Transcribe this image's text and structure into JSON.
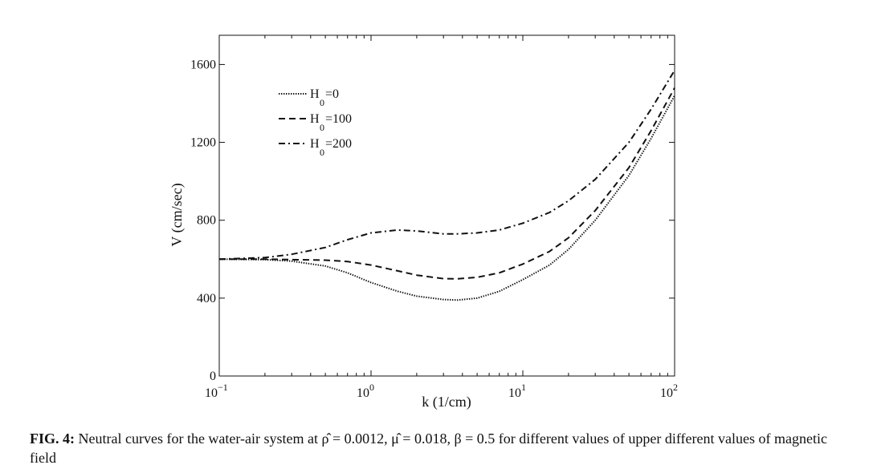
{
  "chart_data": {
    "type": "line",
    "xscale": "log",
    "xlim": [
      0.1,
      100
    ],
    "ylim": [
      0,
      1750
    ],
    "xlabel": "k (1/cm)",
    "ylabel": "V (cm/sec)",
    "x_ticks": [
      {
        "value": 0.1,
        "base": "10",
        "exp": "−1"
      },
      {
        "value": 1,
        "base": "10",
        "exp": "0"
      },
      {
        "value": 10,
        "base": "10",
        "exp": "1"
      },
      {
        "value": 100,
        "base": "10",
        "exp": "2"
      }
    ],
    "y_ticks": [
      {
        "value": 0,
        "label": "0"
      },
      {
        "value": 400,
        "label": "400"
      },
      {
        "value": 800,
        "label": "800"
      },
      {
        "value": 1200,
        "label": "1200"
      },
      {
        "value": 1600,
        "label": "1600"
      }
    ],
    "grid": false,
    "legend_position": "top-left",
    "x": [
      0.1,
      0.2,
      0.3,
      0.5,
      0.7,
      1.0,
      1.5,
      2.0,
      3.0,
      3.7,
      5.0,
      7.0,
      10.0,
      15.0,
      20.0,
      30.0,
      50.0,
      70.0,
      100.0
    ],
    "series": [
      {
        "name": "H0=0",
        "sub": "0",
        "label_pre": "H",
        "label_post": "=0",
        "style": "dotted",
        "values": [
          600,
          598,
          590,
          565,
          530,
          480,
          435,
          410,
          393,
          390,
          400,
          435,
          495,
          570,
          650,
          800,
          1030,
          1220,
          1440
        ]
      },
      {
        "name": "H0=100",
        "sub": "0",
        "label_pre": "H",
        "label_post": "=100",
        "style": "dashed",
        "values": [
          600,
          600,
          598,
          595,
          588,
          570,
          540,
          518,
          500,
          499,
          507,
          530,
          575,
          640,
          710,
          850,
          1070,
          1260,
          1480
        ]
      },
      {
        "name": "H0=200",
        "sub": "0",
        "label_pre": "H",
        "label_post": "=200",
        "style": "dashdot",
        "values": [
          600,
          608,
          625,
          660,
          700,
          735,
          750,
          745,
          730,
          730,
          735,
          750,
          785,
          840,
          900,
          1010,
          1200,
          1370,
          1570
        ]
      }
    ]
  },
  "caption": {
    "label": "FIG. 4:",
    "text": " Neutral curves for the water-air system at ρ̂ = 0.0012, μ̂ = 0.018, β = 0.5 for different values of upper different values of magnetic field"
  }
}
